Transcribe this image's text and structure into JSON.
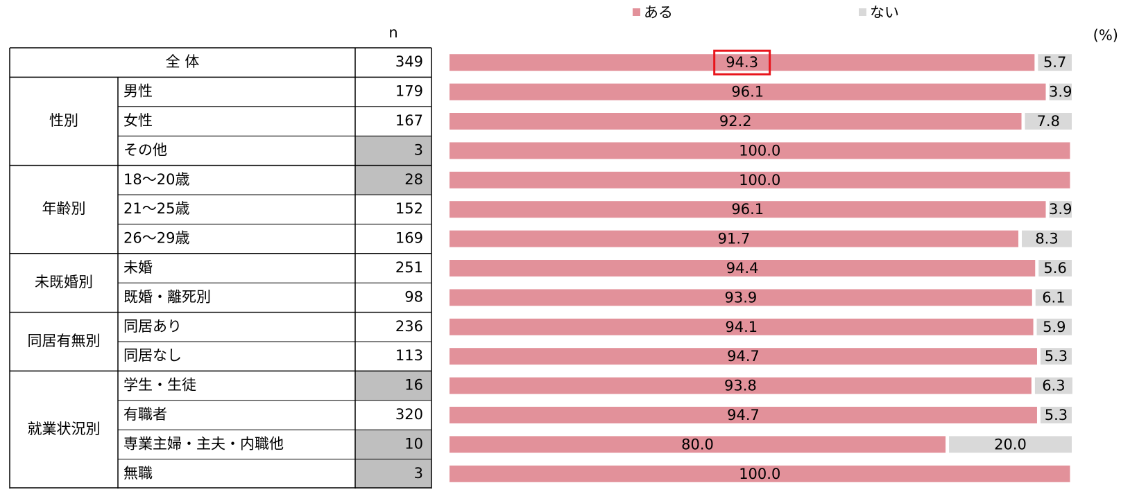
{
  "chart_data": {
    "type": "stacked_bar_table",
    "n_label": "n",
    "unit_label": "(%)",
    "groups": [
      {
        "label": "全 体",
        "span": 1
      },
      {
        "label": "性別",
        "span": 3
      },
      {
        "label": "年齢別",
        "span": 3
      },
      {
        "label": "未既婚別",
        "span": 2
      },
      {
        "label": "同居有無別",
        "span": 2
      },
      {
        "label": "就業状況別",
        "span": 4
      }
    ],
    "categories": [
      null,
      "男性",
      "女性",
      "その他",
      "18～20歳",
      "21～25歳",
      "26～29歳",
      "未婚",
      "既婚・離死別",
      "同居あり",
      "同居なし",
      "学生・生徒",
      "有職者",
      "専業主婦・主夫・内職他",
      "無職"
    ],
    "n_values": [
      349,
      179,
      167,
      3,
      28,
      152,
      169,
      251,
      98,
      236,
      113,
      16,
      320,
      10,
      3
    ],
    "n_shaded": [
      false,
      false,
      false,
      true,
      true,
      false,
      false,
      false,
      false,
      false,
      false,
      true,
      false,
      true,
      true
    ],
    "n_shade_color": "#bfbfbf",
    "xlim": [
      0,
      100
    ],
    "series": [
      {
        "name": "ある",
        "color": "#e2919a",
        "values": [
          94.3,
          96.1,
          92.2,
          100,
          100,
          96.1,
          91.7,
          94.4,
          93.9,
          94.1,
          94.7,
          93.8,
          94.7,
          80,
          100
        ],
        "value_labels": [
          "94.3",
          "96.1",
          "92.2",
          "100.0",
          "100.0",
          "96.1",
          "91.7",
          "94.4",
          "93.9",
          "94.1",
          "94.7",
          "93.8",
          "94.7",
          "80.0",
          "100.0"
        ]
      },
      {
        "name": "ない",
        "color": "#d9d9d9",
        "values": [
          5.7,
          3.9,
          7.8,
          0,
          0,
          3.9,
          8.3,
          5.6,
          6.1,
          5.9,
          5.3,
          6.3,
          5.3,
          20,
          0
        ],
        "value_labels": [
          "5.7",
          "3.9",
          "7.8",
          null,
          null,
          "3.9",
          "8.3",
          "5.6",
          "6.1",
          "5.9",
          "5.3",
          "6.3",
          "5.3",
          "20.0",
          null
        ]
      }
    ],
    "highlight": [
      0,
      0
    ],
    "highlight_color": "#e8141b"
  }
}
